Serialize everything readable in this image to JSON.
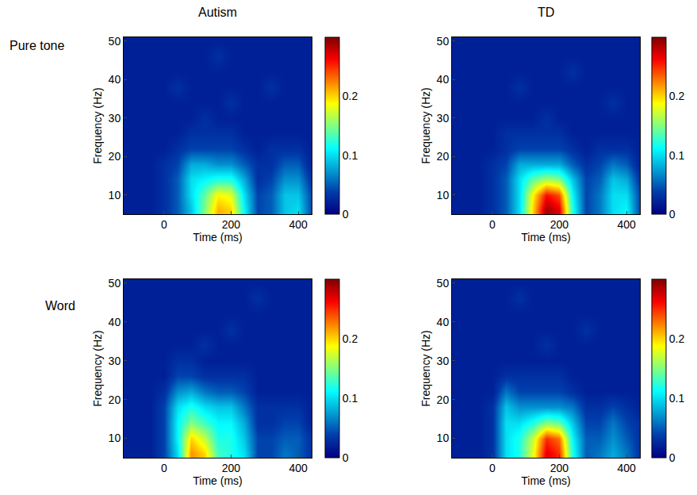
{
  "chart_data": {
    "type": "heatmap",
    "column_titles": [
      "Autism",
      "TD"
    ],
    "row_titles": [
      "Pure tone",
      "Word"
    ],
    "x_label": "Time (ms)",
    "y_label": "Frequency (Hz)",
    "x": [
      -120,
      -80,
      -40,
      0,
      40,
      80,
      120,
      160,
      200,
      240,
      280,
      320,
      360,
      400,
      440
    ],
    "y": [
      6,
      10,
      14,
      18,
      22,
      26,
      30,
      34,
      38,
      42,
      46,
      50
    ],
    "xlim": [
      -120,
      440
    ],
    "xticks": [
      0,
      200,
      400
    ],
    "ylim": [
      5,
      51
    ],
    "yticks": [
      10,
      20,
      30,
      40,
      50
    ],
    "colorbar_range": [
      0,
      0.3
    ],
    "colorbar_ticks": [
      0,
      0.1,
      0.2
    ],
    "panels": [
      [
        {
          "cells": [
            [
              0.02,
              0.02,
              0.02,
              0.03,
              0.05,
              0.09,
              0.15,
              0.21,
              0.2,
              0.11,
              0.04,
              0.05,
              0.09,
              0.1,
              0.04
            ],
            [
              0.02,
              0.02,
              0.02,
              0.03,
              0.05,
              0.1,
              0.14,
              0.19,
              0.18,
              0.1,
              0.04,
              0.05,
              0.09,
              0.09,
              0.04
            ],
            [
              0.02,
              0.02,
              0.02,
              0.03,
              0.05,
              0.1,
              0.11,
              0.12,
              0.12,
              0.08,
              0.03,
              0.04,
              0.07,
              0.07,
              0.03
            ],
            [
              0.02,
              0.02,
              0.02,
              0.03,
              0.04,
              0.08,
              0.08,
              0.07,
              0.07,
              0.05,
              0.03,
              0.03,
              0.05,
              0.05,
              0.02
            ],
            [
              0.02,
              0.02,
              0.02,
              0.02,
              0.03,
              0.04,
              0.04,
              0.04,
              0.04,
              0.03,
              0.02,
              0.03,
              0.03,
              0.03,
              0.02
            ],
            [
              0.02,
              0.02,
              0.02,
              0.02,
              0.02,
              0.03,
              0.03,
              0.03,
              0.03,
              0.02,
              0.02,
              0.02,
              0.02,
              0.02,
              0.02
            ],
            [
              0.02,
              0.02,
              0.02,
              0.02,
              0.02,
              0.02,
              0.03,
              0.02,
              0.02,
              0.02,
              0.02,
              0.02,
              0.02,
              0.02,
              0.02
            ],
            [
              0.02,
              0.02,
              0.02,
              0.02,
              0.02,
              0.02,
              0.02,
              0.02,
              0.03,
              0.02,
              0.02,
              0.02,
              0.02,
              0.02,
              0.02
            ],
            [
              0.02,
              0.02,
              0.02,
              0.02,
              0.03,
              0.02,
              0.02,
              0.02,
              0.02,
              0.02,
              0.02,
              0.03,
              0.02,
              0.02,
              0.02
            ],
            [
              0.02,
              0.02,
              0.02,
              0.02,
              0.02,
              0.02,
              0.02,
              0.02,
              0.02,
              0.02,
              0.02,
              0.02,
              0.02,
              0.02,
              0.02
            ],
            [
              0.02,
              0.02,
              0.02,
              0.02,
              0.02,
              0.02,
              0.02,
              0.03,
              0.02,
              0.02,
              0.02,
              0.02,
              0.02,
              0.02,
              0.02
            ],
            [
              0.02,
              0.02,
              0.02,
              0.02,
              0.02,
              0.02,
              0.02,
              0.02,
              0.02,
              0.02,
              0.02,
              0.02,
              0.02,
              0.02,
              0.02
            ]
          ]
        },
        {
          "cells": [
            [
              0.02,
              0.02,
              0.02,
              0.03,
              0.05,
              0.1,
              0.2,
              0.29,
              0.27,
              0.12,
              0.04,
              0.06,
              0.1,
              0.11,
              0.04
            ],
            [
              0.02,
              0.02,
              0.02,
              0.03,
              0.05,
              0.1,
              0.19,
              0.26,
              0.24,
              0.11,
              0.04,
              0.06,
              0.1,
              0.1,
              0.04
            ],
            [
              0.02,
              0.02,
              0.02,
              0.03,
              0.05,
              0.1,
              0.14,
              0.16,
              0.15,
              0.09,
              0.04,
              0.05,
              0.09,
              0.08,
              0.03
            ],
            [
              0.02,
              0.02,
              0.02,
              0.03,
              0.04,
              0.08,
              0.08,
              0.08,
              0.08,
              0.05,
              0.03,
              0.04,
              0.06,
              0.05,
              0.02
            ],
            [
              0.02,
              0.02,
              0.02,
              0.02,
              0.03,
              0.04,
              0.04,
              0.04,
              0.04,
              0.03,
              0.02,
              0.03,
              0.03,
              0.03,
              0.02
            ],
            [
              0.02,
              0.02,
              0.02,
              0.02,
              0.03,
              0.03,
              0.03,
              0.03,
              0.03,
              0.02,
              0.02,
              0.02,
              0.02,
              0.02,
              0.02
            ],
            [
              0.02,
              0.02,
              0.02,
              0.02,
              0.02,
              0.02,
              0.02,
              0.03,
              0.02,
              0.02,
              0.02,
              0.02,
              0.02,
              0.02,
              0.02
            ],
            [
              0.02,
              0.02,
              0.02,
              0.02,
              0.02,
              0.02,
              0.02,
              0.02,
              0.02,
              0.02,
              0.02,
              0.02,
              0.03,
              0.02,
              0.02
            ],
            [
              0.02,
              0.02,
              0.02,
              0.02,
              0.02,
              0.03,
              0.02,
              0.02,
              0.02,
              0.02,
              0.02,
              0.02,
              0.02,
              0.02,
              0.02
            ],
            [
              0.02,
              0.02,
              0.02,
              0.02,
              0.02,
              0.02,
              0.02,
              0.02,
              0.02,
              0.03,
              0.02,
              0.02,
              0.02,
              0.02,
              0.02
            ],
            [
              0.02,
              0.02,
              0.02,
              0.02,
              0.02,
              0.02,
              0.02,
              0.02,
              0.02,
              0.02,
              0.02,
              0.02,
              0.02,
              0.02,
              0.02
            ],
            [
              0.02,
              0.02,
              0.02,
              0.02,
              0.02,
              0.02,
              0.02,
              0.02,
              0.02,
              0.02,
              0.02,
              0.02,
              0.02,
              0.02,
              0.02
            ]
          ]
        }
      ],
      [
        {
          "cells": [
            [
              0.02,
              0.02,
              0.02,
              0.04,
              0.1,
              0.22,
              0.2,
              0.13,
              0.12,
              0.1,
              0.04,
              0.04,
              0.06,
              0.05,
              0.03
            ],
            [
              0.02,
              0.02,
              0.02,
              0.04,
              0.11,
              0.2,
              0.17,
              0.12,
              0.12,
              0.09,
              0.04,
              0.04,
              0.05,
              0.05,
              0.03
            ],
            [
              0.02,
              0.02,
              0.02,
              0.04,
              0.11,
              0.15,
              0.13,
              0.11,
              0.11,
              0.08,
              0.03,
              0.03,
              0.04,
              0.04,
              0.02
            ],
            [
              0.02,
              0.02,
              0.02,
              0.04,
              0.1,
              0.12,
              0.1,
              0.09,
              0.09,
              0.06,
              0.03,
              0.03,
              0.03,
              0.03,
              0.02
            ],
            [
              0.02,
              0.02,
              0.02,
              0.03,
              0.07,
              0.08,
              0.06,
              0.05,
              0.05,
              0.04,
              0.02,
              0.02,
              0.02,
              0.02,
              0.02
            ],
            [
              0.02,
              0.02,
              0.02,
              0.02,
              0.04,
              0.04,
              0.03,
              0.03,
              0.03,
              0.03,
              0.02,
              0.02,
              0.02,
              0.02,
              0.02
            ],
            [
              0.02,
              0.02,
              0.02,
              0.02,
              0.03,
              0.03,
              0.02,
              0.02,
              0.02,
              0.02,
              0.02,
              0.02,
              0.02,
              0.02,
              0.02
            ],
            [
              0.02,
              0.02,
              0.02,
              0.02,
              0.02,
              0.02,
              0.03,
              0.02,
              0.02,
              0.02,
              0.02,
              0.02,
              0.02,
              0.02,
              0.02
            ],
            [
              0.02,
              0.02,
              0.02,
              0.02,
              0.02,
              0.02,
              0.02,
              0.02,
              0.03,
              0.02,
              0.02,
              0.02,
              0.02,
              0.02,
              0.02
            ],
            [
              0.02,
              0.02,
              0.02,
              0.02,
              0.02,
              0.02,
              0.02,
              0.02,
              0.02,
              0.02,
              0.02,
              0.02,
              0.02,
              0.02,
              0.02
            ],
            [
              0.02,
              0.02,
              0.02,
              0.02,
              0.02,
              0.02,
              0.02,
              0.02,
              0.02,
              0.02,
              0.03,
              0.02,
              0.02,
              0.02,
              0.02
            ],
            [
              0.02,
              0.02,
              0.02,
              0.02,
              0.02,
              0.02,
              0.02,
              0.02,
              0.02,
              0.02,
              0.02,
              0.02,
              0.02,
              0.02,
              0.02
            ]
          ]
        },
        {
          "cells": [
            [
              0.02,
              0.02,
              0.02,
              0.03,
              0.1,
              0.12,
              0.18,
              0.27,
              0.25,
              0.12,
              0.05,
              0.06,
              0.08,
              0.06,
              0.03
            ],
            [
              0.02,
              0.02,
              0.02,
              0.03,
              0.1,
              0.12,
              0.17,
              0.25,
              0.23,
              0.11,
              0.05,
              0.05,
              0.07,
              0.05,
              0.03
            ],
            [
              0.02,
              0.02,
              0.02,
              0.03,
              0.1,
              0.1,
              0.12,
              0.15,
              0.14,
              0.09,
              0.04,
              0.04,
              0.06,
              0.04,
              0.03
            ],
            [
              0.02,
              0.02,
              0.02,
              0.03,
              0.09,
              0.07,
              0.07,
              0.07,
              0.07,
              0.06,
              0.03,
              0.03,
              0.04,
              0.03,
              0.02
            ],
            [
              0.02,
              0.02,
              0.02,
              0.02,
              0.06,
              0.04,
              0.04,
              0.04,
              0.04,
              0.03,
              0.02,
              0.02,
              0.02,
              0.02,
              0.02
            ],
            [
              0.02,
              0.02,
              0.02,
              0.02,
              0.03,
              0.03,
              0.03,
              0.03,
              0.03,
              0.02,
              0.02,
              0.02,
              0.02,
              0.02,
              0.02
            ],
            [
              0.02,
              0.02,
              0.02,
              0.02,
              0.02,
              0.02,
              0.02,
              0.02,
              0.02,
              0.02,
              0.02,
              0.02,
              0.02,
              0.02,
              0.02
            ],
            [
              0.02,
              0.02,
              0.02,
              0.02,
              0.02,
              0.02,
              0.02,
              0.03,
              0.02,
              0.02,
              0.02,
              0.02,
              0.02,
              0.02,
              0.02
            ],
            [
              0.02,
              0.02,
              0.02,
              0.02,
              0.02,
              0.02,
              0.02,
              0.02,
              0.02,
              0.02,
              0.03,
              0.02,
              0.02,
              0.02,
              0.02
            ],
            [
              0.02,
              0.02,
              0.02,
              0.02,
              0.02,
              0.02,
              0.02,
              0.02,
              0.02,
              0.02,
              0.02,
              0.02,
              0.02,
              0.02,
              0.02
            ],
            [
              0.02,
              0.02,
              0.02,
              0.02,
              0.02,
              0.03,
              0.02,
              0.02,
              0.02,
              0.02,
              0.02,
              0.02,
              0.02,
              0.02,
              0.02
            ],
            [
              0.02,
              0.02,
              0.02,
              0.02,
              0.02,
              0.02,
              0.02,
              0.02,
              0.02,
              0.02,
              0.02,
              0.02,
              0.02,
              0.02,
              0.02
            ]
          ]
        }
      ]
    ]
  }
}
